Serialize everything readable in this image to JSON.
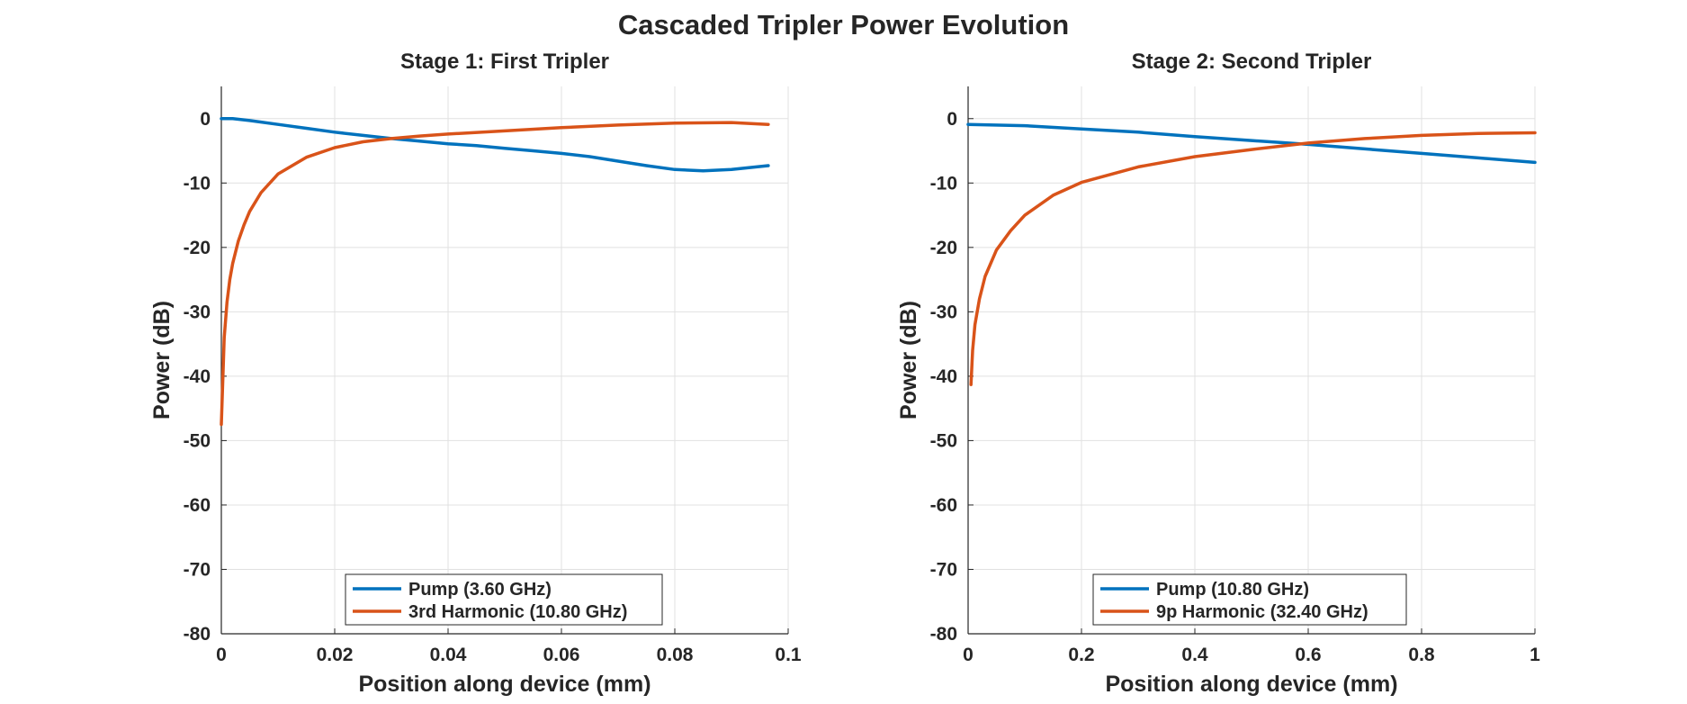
{
  "figure": {
    "title": "Cascaded Tripler Power Evolution"
  },
  "chart_data": [
    {
      "type": "line",
      "title": "Stage 1: First Tripler",
      "xlabel": "Position along device (mm)",
      "ylabel": "Power (dB)",
      "xlim": [
        0,
        0.1
      ],
      "ylim": [
        -80,
        5
      ],
      "xticks": [
        0,
        0.02,
        0.04,
        0.06,
        0.08,
        0.1
      ],
      "xtick_labels": [
        "0",
        "0.02",
        "0.04",
        "0.06",
        "0.08",
        "0.1"
      ],
      "yticks": [
        -80,
        -70,
        -60,
        -50,
        -40,
        -30,
        -20,
        -10,
        0
      ],
      "ytick_labels": [
        "-80",
        "-70",
        "-60",
        "-50",
        "-40",
        "-30",
        "-20",
        "-10",
        "0"
      ],
      "grid": true,
      "legend_position": "bottom-center",
      "series": [
        {
          "name": "Pump (3.60 GHz)",
          "color": "#0072BD",
          "x": [
            0,
            0.002,
            0.005,
            0.01,
            0.015,
            0.02,
            0.025,
            0.03,
            0.035,
            0.04,
            0.045,
            0.05,
            0.055,
            0.06,
            0.065,
            0.07,
            0.075,
            0.08,
            0.085,
            0.09,
            0.0965
          ],
          "y": [
            0,
            0,
            -0.3,
            -0.9,
            -1.5,
            -2.1,
            -2.6,
            -3.1,
            -3.5,
            -3.9,
            -4.2,
            -4.6,
            -5.0,
            -5.4,
            -5.9,
            -6.6,
            -7.3,
            -7.9,
            -8.1,
            -7.9,
            -7.3
          ]
        },
        {
          "name": "3rd Harmonic (10.80 GHz)",
          "color": "#D95319",
          "x": [
            0,
            0.0005,
            0.001,
            0.0015,
            0.002,
            0.003,
            0.004,
            0.005,
            0.007,
            0.01,
            0.015,
            0.02,
            0.025,
            0.03,
            0.035,
            0.04,
            0.05,
            0.06,
            0.07,
            0.08,
            0.09,
            0.0965
          ],
          "y": [
            -47.5,
            -34,
            -28.5,
            -25,
            -22.5,
            -19,
            -16.5,
            -14.4,
            -11.5,
            -8.6,
            -6,
            -4.5,
            -3.6,
            -3.1,
            -2.7,
            -2.4,
            -1.9,
            -1.4,
            -1.0,
            -0.7,
            -0.6,
            -0.9
          ]
        }
      ]
    },
    {
      "type": "line",
      "title": "Stage 2: Second Tripler",
      "xlabel": "Position along device (mm)",
      "ylabel": "Power (dB)",
      "xlim": [
        0,
        1
      ],
      "ylim": [
        -80,
        5
      ],
      "xticks": [
        0,
        0.2,
        0.4,
        0.6,
        0.8,
        1
      ],
      "xtick_labels": [
        "0",
        "0.2",
        "0.4",
        "0.6",
        "0.8",
        "1"
      ],
      "yticks": [
        -80,
        -70,
        -60,
        -50,
        -40,
        -30,
        -20,
        -10,
        0
      ],
      "ytick_labels": [
        "-80",
        "-70",
        "-60",
        "-50",
        "-40",
        "-30",
        "-20",
        "-10",
        "0"
      ],
      "grid": true,
      "legend_position": "bottom-center",
      "series": [
        {
          "name": "Pump (10.80 GHz)",
          "color": "#0072BD",
          "x": [
            0,
            0.1,
            0.2,
            0.3,
            0.4,
            0.5,
            0.6,
            0.7,
            0.8,
            0.9,
            1.0
          ],
          "y": [
            -0.9,
            -1.1,
            -1.6,
            -2.1,
            -2.8,
            -3.4,
            -4.0,
            -4.7,
            -5.4,
            -6.1,
            -6.8
          ]
        },
        {
          "name": "9p Harmonic (32.40 GHz)",
          "color": "#D95319",
          "x": [
            0.005,
            0.008,
            0.012,
            0.02,
            0.03,
            0.05,
            0.075,
            0.1,
            0.15,
            0.2,
            0.3,
            0.4,
            0.5,
            0.6,
            0.7,
            0.8,
            0.9,
            1.0
          ],
          "y": [
            -41.3,
            -36,
            -32,
            -28,
            -24.5,
            -20.4,
            -17.4,
            -15.0,
            -11.9,
            -9.9,
            -7.5,
            -5.9,
            -4.8,
            -3.8,
            -3.1,
            -2.6,
            -2.3,
            -2.2
          ]
        }
      ]
    }
  ]
}
